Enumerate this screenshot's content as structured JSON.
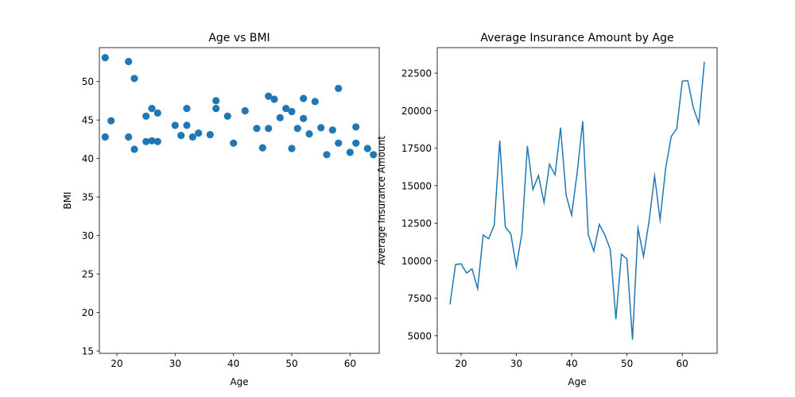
{
  "chart_data": [
    {
      "type": "scatter",
      "title": "Age vs BMI",
      "xlabel": "Age",
      "ylabel": "BMI",
      "xlim": [
        17,
        65
      ],
      "ylim": [
        14.7,
        54.4
      ],
      "xticks": [
        20,
        30,
        40,
        50,
        60
      ],
      "yticks": [
        15,
        20,
        25,
        30,
        35,
        40,
        45,
        50
      ],
      "grid": false,
      "color": "#1f77b4",
      "points": [
        [
          18,
          53.1
        ],
        [
          22,
          52.6
        ],
        [
          23,
          50.4
        ],
        [
          58,
          49.1
        ],
        [
          46,
          48.1
        ],
        [
          47,
          47.7
        ],
        [
          52,
          47.8
        ],
        [
          54,
          47.4
        ],
        [
          37,
          47.5
        ],
        [
          26,
          46.5
        ],
        [
          27,
          45.9
        ],
        [
          32,
          46.5
        ],
        [
          42,
          46.2
        ],
        [
          25,
          45.5
        ],
        [
          37,
          46.5
        ],
        [
          50,
          46.1
        ],
        [
          49,
          46.5
        ],
        [
          19,
          44.9
        ],
        [
          39,
          45.5
        ],
        [
          48,
          45.3
        ],
        [
          52,
          45.2
        ],
        [
          30,
          44.3
        ],
        [
          32,
          44.3
        ],
        [
          34,
          43.3
        ],
        [
          44,
          43.9
        ],
        [
          46,
          43.9
        ],
        [
          51,
          43.9
        ],
        [
          55,
          44.0
        ],
        [
          61,
          44.1
        ],
        [
          22,
          42.8
        ],
        [
          31,
          43.0
        ],
        [
          33,
          42.8
        ],
        [
          36,
          43.1
        ],
        [
          53,
          43.2
        ],
        [
          57,
          43.7
        ],
        [
          18,
          42.8
        ],
        [
          25,
          42.2
        ],
        [
          26,
          42.3
        ],
        [
          27,
          42.2
        ],
        [
          40,
          42.0
        ],
        [
          58,
          42.0
        ],
        [
          61,
          42.0
        ],
        [
          63,
          41.3
        ],
        [
          23,
          41.2
        ],
        [
          45,
          41.4
        ],
        [
          50,
          41.3
        ],
        [
          56,
          40.5
        ],
        [
          60,
          40.8
        ],
        [
          64,
          40.5
        ]
      ]
    },
    {
      "type": "line",
      "title": "Average Insurance Amount by Age",
      "xlabel": "Age",
      "ylabel": "Average Insurance Amount",
      "xlim": [
        15.7,
        66.3
      ],
      "ylim": [
        3830,
        24200
      ],
      "xticks": [
        20,
        30,
        40,
        50,
        60
      ],
      "yticks": [
        5000,
        7500,
        10000,
        12500,
        15000,
        17500,
        20000,
        22500
      ],
      "grid": false,
      "color": "#1f77b4",
      "x": [
        18,
        19,
        20,
        21,
        22,
        23,
        24,
        25,
        26,
        27,
        28,
        29,
        30,
        31,
        32,
        33,
        34,
        35,
        36,
        37,
        38,
        39,
        40,
        41,
        42,
        43,
        44,
        45,
        46,
        47,
        48,
        49,
        50,
        51,
        52,
        53,
        54,
        55,
        56,
        57,
        58,
        59,
        60,
        61,
        62,
        63,
        64
      ],
      "y": [
        7090,
        9750,
        9800,
        9180,
        9460,
        8130,
        11710,
        11470,
        12380,
        18000,
        12250,
        11790,
        9620,
        11800,
        17650,
        14740,
        15680,
        13890,
        16430,
        15720,
        18870,
        14380,
        13030,
        15870,
        19290,
        11760,
        10640,
        12420,
        11720,
        10740,
        6110,
        10430,
        10120,
        4740,
        12170,
        10290,
        12640,
        15650,
        12730,
        16150,
        18280,
        18780,
        21960,
        22010,
        20190,
        19160,
        23260
      ]
    }
  ]
}
